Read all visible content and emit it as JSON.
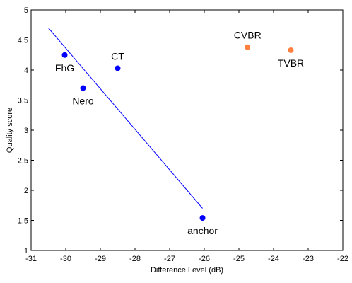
{
  "chart_data": {
    "type": "scatter",
    "title": "",
    "xlabel": "Difference Level (dB)",
    "ylabel": "Quality score",
    "xlim": [
      -31,
      -22
    ],
    "ylim": [
      1,
      5
    ],
    "xticks": [
      "-31",
      "-30",
      "-29",
      "-28",
      "-27",
      "-26",
      "-25",
      "-24",
      "-23",
      "-22"
    ],
    "yticks": [
      "1",
      "1.5",
      "2",
      "2.5",
      "3",
      "3.5",
      "4",
      "4.5",
      "5"
    ],
    "grid": false,
    "series": [
      {
        "color": "#0000ff",
        "points": [
          {
            "label": "FhG",
            "x": -30.03,
            "y": 4.25,
            "label_pos": "below"
          },
          {
            "label": "Nero",
            "x": -29.5,
            "y": 3.7,
            "label_pos": "below"
          },
          {
            "label": "CT",
            "x": -28.5,
            "y": 4.03,
            "label_pos": "above"
          },
          {
            "label": "anchor",
            "x": -26.05,
            "y": 1.54,
            "label_pos": "below"
          }
        ]
      },
      {
        "color": "#ff7f3f",
        "points": [
          {
            "label": "CVBR",
            "x": -24.75,
            "y": 4.38,
            "label_pos": "above"
          },
          {
            "label": "TVBR",
            "x": -23.5,
            "y": 4.33,
            "label_pos": "below"
          }
        ]
      }
    ],
    "fit_line": {
      "color": "#0000ff",
      "x": [
        -30.5,
        -26.05
      ],
      "y": [
        4.7,
        1.7
      ]
    }
  }
}
